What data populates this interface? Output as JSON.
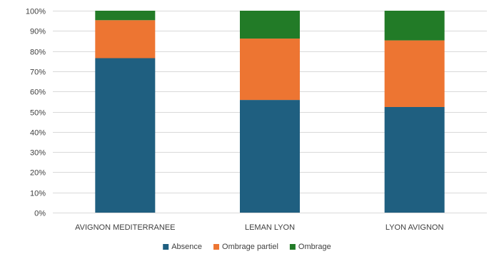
{
  "chart_data": {
    "type": "bar",
    "stacked": true,
    "percent": true,
    "categories": [
      "AVIGNON MEDITERRANEE",
      "LEMAN LYON",
      "LYON AVIGNON"
    ],
    "series": [
      {
        "name": "Absence",
        "color": "#1f5f80",
        "values": [
          76.5,
          55.8,
          52.3
        ]
      },
      {
        "name": "Ombrage partiel",
        "color": "#ed7532",
        "values": [
          18.8,
          30.4,
          33.0
        ]
      },
      {
        "name": "Ombrage",
        "color": "#227b27",
        "values": [
          4.7,
          13.8,
          14.7
        ]
      }
    ],
    "yticks": [
      "0%",
      "10%",
      "20%",
      "30%",
      "40%",
      "50%",
      "60%",
      "70%",
      "80%",
      "90%",
      "100%"
    ],
    "ylim": [
      0,
      100
    ],
    "grid": true,
    "legend": "bottom",
    "title": "",
    "xlabel": "",
    "ylabel": ""
  }
}
